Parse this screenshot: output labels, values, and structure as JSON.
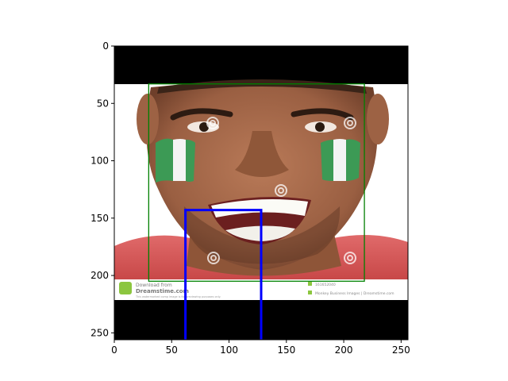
{
  "figure": {
    "x_ticks": [
      "0",
      "50",
      "100",
      "150",
      "200",
      "250"
    ],
    "y_ticks": [
      "0",
      "50",
      "100",
      "150",
      "200",
      "250"
    ]
  },
  "image": {
    "subject": "smiling man with flag face paint",
    "watermark": {
      "text_lines": [
        "Download from",
        "Dreamstime.com"
      ],
      "fine_print": "This watermarked comp image is for previewing purposes only.",
      "id_text": "161652040",
      "credit_text": "Monkey Business Images | Dreamstime.com"
    },
    "colors": {
      "letterbox": "#000000",
      "flag_green": "#3c9a55",
      "flag_white": "#f4f4f4",
      "skin": "#a86a4c",
      "shirt": "#d65454",
      "background": "#ffffff"
    }
  },
  "chart_data": {
    "type": "image-overlay",
    "xlim": [
      0,
      256
    ],
    "ylim": [
      256,
      0
    ],
    "image_extent": {
      "x": [
        0,
        256
      ],
      "y": [
        0,
        256
      ]
    },
    "content_region": {
      "x": [
        0,
        256
      ],
      "y": [
        33,
        221
      ]
    },
    "annotations": [
      {
        "kind": "rectangle",
        "color": "#008000",
        "x": [
          30,
          218
        ],
        "y": [
          33,
          205
        ]
      },
      {
        "kind": "polyline",
        "color": "#0000ff",
        "points": [
          [
            62,
            256
          ],
          [
            62,
            143
          ],
          [
            128,
            143
          ],
          [
            128,
            256
          ]
        ]
      }
    ]
  }
}
